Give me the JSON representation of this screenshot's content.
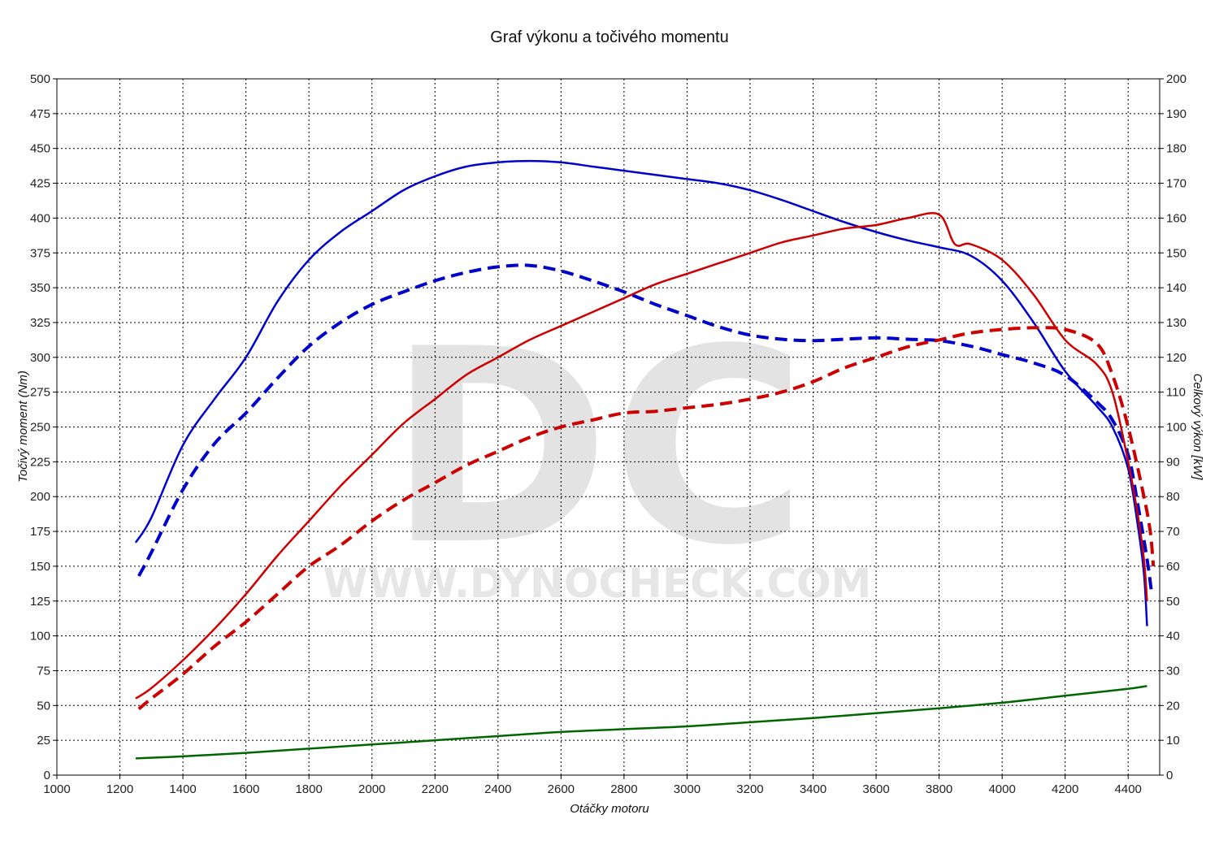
{
  "chart_data": {
    "type": "line",
    "title": "Graf výkonu a točivého momentu",
    "xlabel": "Otáčky motoru",
    "ylabel_left": "Točivý moment (Nm)",
    "ylabel_right": "Celkový výkon [kW]",
    "xlim": [
      1000,
      4500
    ],
    "ylim_left": [
      0,
      500
    ],
    "ylim_right": [
      0,
      200
    ],
    "x_ticks": [
      "1000",
      "1200",
      "1400",
      "1600",
      "1800",
      "2000",
      "2200",
      "2400",
      "2600",
      "2800",
      "3000",
      "3200",
      "3400",
      "3600",
      "3800",
      "4000",
      "4200",
      "4400"
    ],
    "y_left_ticks": [
      "0",
      "25",
      "50",
      "75",
      "100",
      "125",
      "150",
      "175",
      "200",
      "225",
      "250",
      "275",
      "300",
      "325",
      "350",
      "375",
      "400",
      "425",
      "450",
      "475",
      "500"
    ],
    "y_right_ticks": [
      "0",
      "10",
      "20",
      "30",
      "40",
      "50",
      "60",
      "70",
      "80",
      "90",
      "100",
      "110",
      "120",
      "130",
      "140",
      "150",
      "160",
      "170",
      "180",
      "190",
      "200"
    ],
    "grid": true,
    "watermark": {
      "letters": "DC",
      "url": "WWW.DYNOCHECK.COM"
    },
    "series": [
      {
        "axis": "left",
        "color": "#0000cc",
        "style": "solid",
        "points": [
          [
            1250,
            167
          ],
          [
            1300,
            185
          ],
          [
            1400,
            237
          ],
          [
            1500,
            270
          ],
          [
            1600,
            300
          ],
          [
            1700,
            340
          ],
          [
            1800,
            370
          ],
          [
            1900,
            390
          ],
          [
            2000,
            405
          ],
          [
            2100,
            420
          ],
          [
            2200,
            430
          ],
          [
            2300,
            437
          ],
          [
            2400,
            440
          ],
          [
            2500,
            441
          ],
          [
            2600,
            440
          ],
          [
            2700,
            437
          ],
          [
            2800,
            434
          ],
          [
            2900,
            431
          ],
          [
            3000,
            428
          ],
          [
            3100,
            425
          ],
          [
            3200,
            420
          ],
          [
            3300,
            413
          ],
          [
            3400,
            405
          ],
          [
            3500,
            397
          ],
          [
            3600,
            390
          ],
          [
            3700,
            384
          ],
          [
            3800,
            379
          ],
          [
            3900,
            373
          ],
          [
            4000,
            355
          ],
          [
            4100,
            325
          ],
          [
            4200,
            290
          ],
          [
            4300,
            265
          ],
          [
            4350,
            250
          ],
          [
            4400,
            220
          ],
          [
            4430,
            180
          ],
          [
            4450,
            145
          ],
          [
            4460,
            107
          ]
        ]
      },
      {
        "axis": "left",
        "color": "#0000cc",
        "style": "dashed",
        "points": [
          [
            1260,
            143
          ],
          [
            1300,
            160
          ],
          [
            1400,
            205
          ],
          [
            1500,
            238
          ],
          [
            1600,
            260
          ],
          [
            1700,
            285
          ],
          [
            1800,
            308
          ],
          [
            1900,
            325
          ],
          [
            2000,
            338
          ],
          [
            2100,
            347
          ],
          [
            2200,
            355
          ],
          [
            2300,
            361
          ],
          [
            2400,
            365
          ],
          [
            2500,
            366
          ],
          [
            2600,
            362
          ],
          [
            2700,
            355
          ],
          [
            2800,
            347
          ],
          [
            2900,
            338
          ],
          [
            3000,
            330
          ],
          [
            3100,
            322
          ],
          [
            3200,
            316
          ],
          [
            3300,
            313
          ],
          [
            3400,
            312
          ],
          [
            3500,
            313
          ],
          [
            3600,
            314
          ],
          [
            3700,
            313
          ],
          [
            3800,
            312
          ],
          [
            3900,
            308
          ],
          [
            4000,
            302
          ],
          [
            4100,
            296
          ],
          [
            4200,
            287
          ],
          [
            4300,
            268
          ],
          [
            4350,
            255
          ],
          [
            4400,
            230
          ],
          [
            4430,
            195
          ],
          [
            4460,
            155
          ],
          [
            4475,
            130
          ]
        ]
      },
      {
        "axis": "right",
        "color": "#cc0000",
        "style": "solid",
        "points": [
          [
            1250,
            22
          ],
          [
            1300,
            25
          ],
          [
            1400,
            33
          ],
          [
            1500,
            42
          ],
          [
            1600,
            52
          ],
          [
            1700,
            63
          ],
          [
            1800,
            73
          ],
          [
            1900,
            83
          ],
          [
            2000,
            92
          ],
          [
            2100,
            101
          ],
          [
            2200,
            108
          ],
          [
            2300,
            115
          ],
          [
            2400,
            120
          ],
          [
            2500,
            125
          ],
          [
            2600,
            129
          ],
          [
            2700,
            133
          ],
          [
            2800,
            137
          ],
          [
            2900,
            141
          ],
          [
            3000,
            144
          ],
          [
            3100,
            147
          ],
          [
            3200,
            150
          ],
          [
            3300,
            153
          ],
          [
            3400,
            155
          ],
          [
            3500,
            157
          ],
          [
            3600,
            158
          ],
          [
            3700,
            160
          ],
          [
            3800,
            161
          ],
          [
            3850,
            152.5
          ],
          [
            3900,
            152.5
          ],
          [
            4000,
            148
          ],
          [
            4100,
            138
          ],
          [
            4200,
            125
          ],
          [
            4300,
            118
          ],
          [
            4350,
            110
          ],
          [
            4400,
            90
          ],
          [
            4430,
            75
          ],
          [
            4450,
            62
          ],
          [
            4460,
            50
          ]
        ]
      },
      {
        "axis": "right",
        "color": "#cc0000",
        "style": "dashed",
        "points": [
          [
            1260,
            19
          ],
          [
            1300,
            22
          ],
          [
            1400,
            29
          ],
          [
            1500,
            37
          ],
          [
            1600,
            44
          ],
          [
            1700,
            52
          ],
          [
            1800,
            60
          ],
          [
            1900,
            66
          ],
          [
            2000,
            73
          ],
          [
            2100,
            79
          ],
          [
            2200,
            84
          ],
          [
            2300,
            89
          ],
          [
            2400,
            93
          ],
          [
            2500,
            97
          ],
          [
            2600,
            100
          ],
          [
            2700,
            102
          ],
          [
            2800,
            104
          ],
          [
            2900,
            104.5
          ],
          [
            3000,
            105.5
          ],
          [
            3100,
            106.5
          ],
          [
            3200,
            108
          ],
          [
            3300,
            110
          ],
          [
            3400,
            113
          ],
          [
            3500,
            117
          ],
          [
            3600,
            120
          ],
          [
            3700,
            123
          ],
          [
            3800,
            125
          ],
          [
            3900,
            127
          ],
          [
            4000,
            128
          ],
          [
            4100,
            128.5
          ],
          [
            4200,
            128
          ],
          [
            4300,
            124
          ],
          [
            4350,
            115
          ],
          [
            4400,
            100
          ],
          [
            4450,
            80
          ],
          [
            4470,
            70
          ],
          [
            4480,
            60
          ]
        ]
      },
      {
        "axis": "left",
        "color": "#006600",
        "style": "solid",
        "points": [
          [
            1250,
            12
          ],
          [
            1400,
            13.5
          ],
          [
            1600,
            16
          ],
          [
            1800,
            19
          ],
          [
            2000,
            22
          ],
          [
            2200,
            25
          ],
          [
            2400,
            28
          ],
          [
            2600,
            31
          ],
          [
            2800,
            33
          ],
          [
            3000,
            35
          ],
          [
            3200,
            38
          ],
          [
            3400,
            41
          ],
          [
            3600,
            44.5
          ],
          [
            3800,
            48
          ],
          [
            4000,
            52
          ],
          [
            4200,
            57
          ],
          [
            4400,
            62
          ],
          [
            4460,
            64
          ]
        ]
      }
    ]
  }
}
